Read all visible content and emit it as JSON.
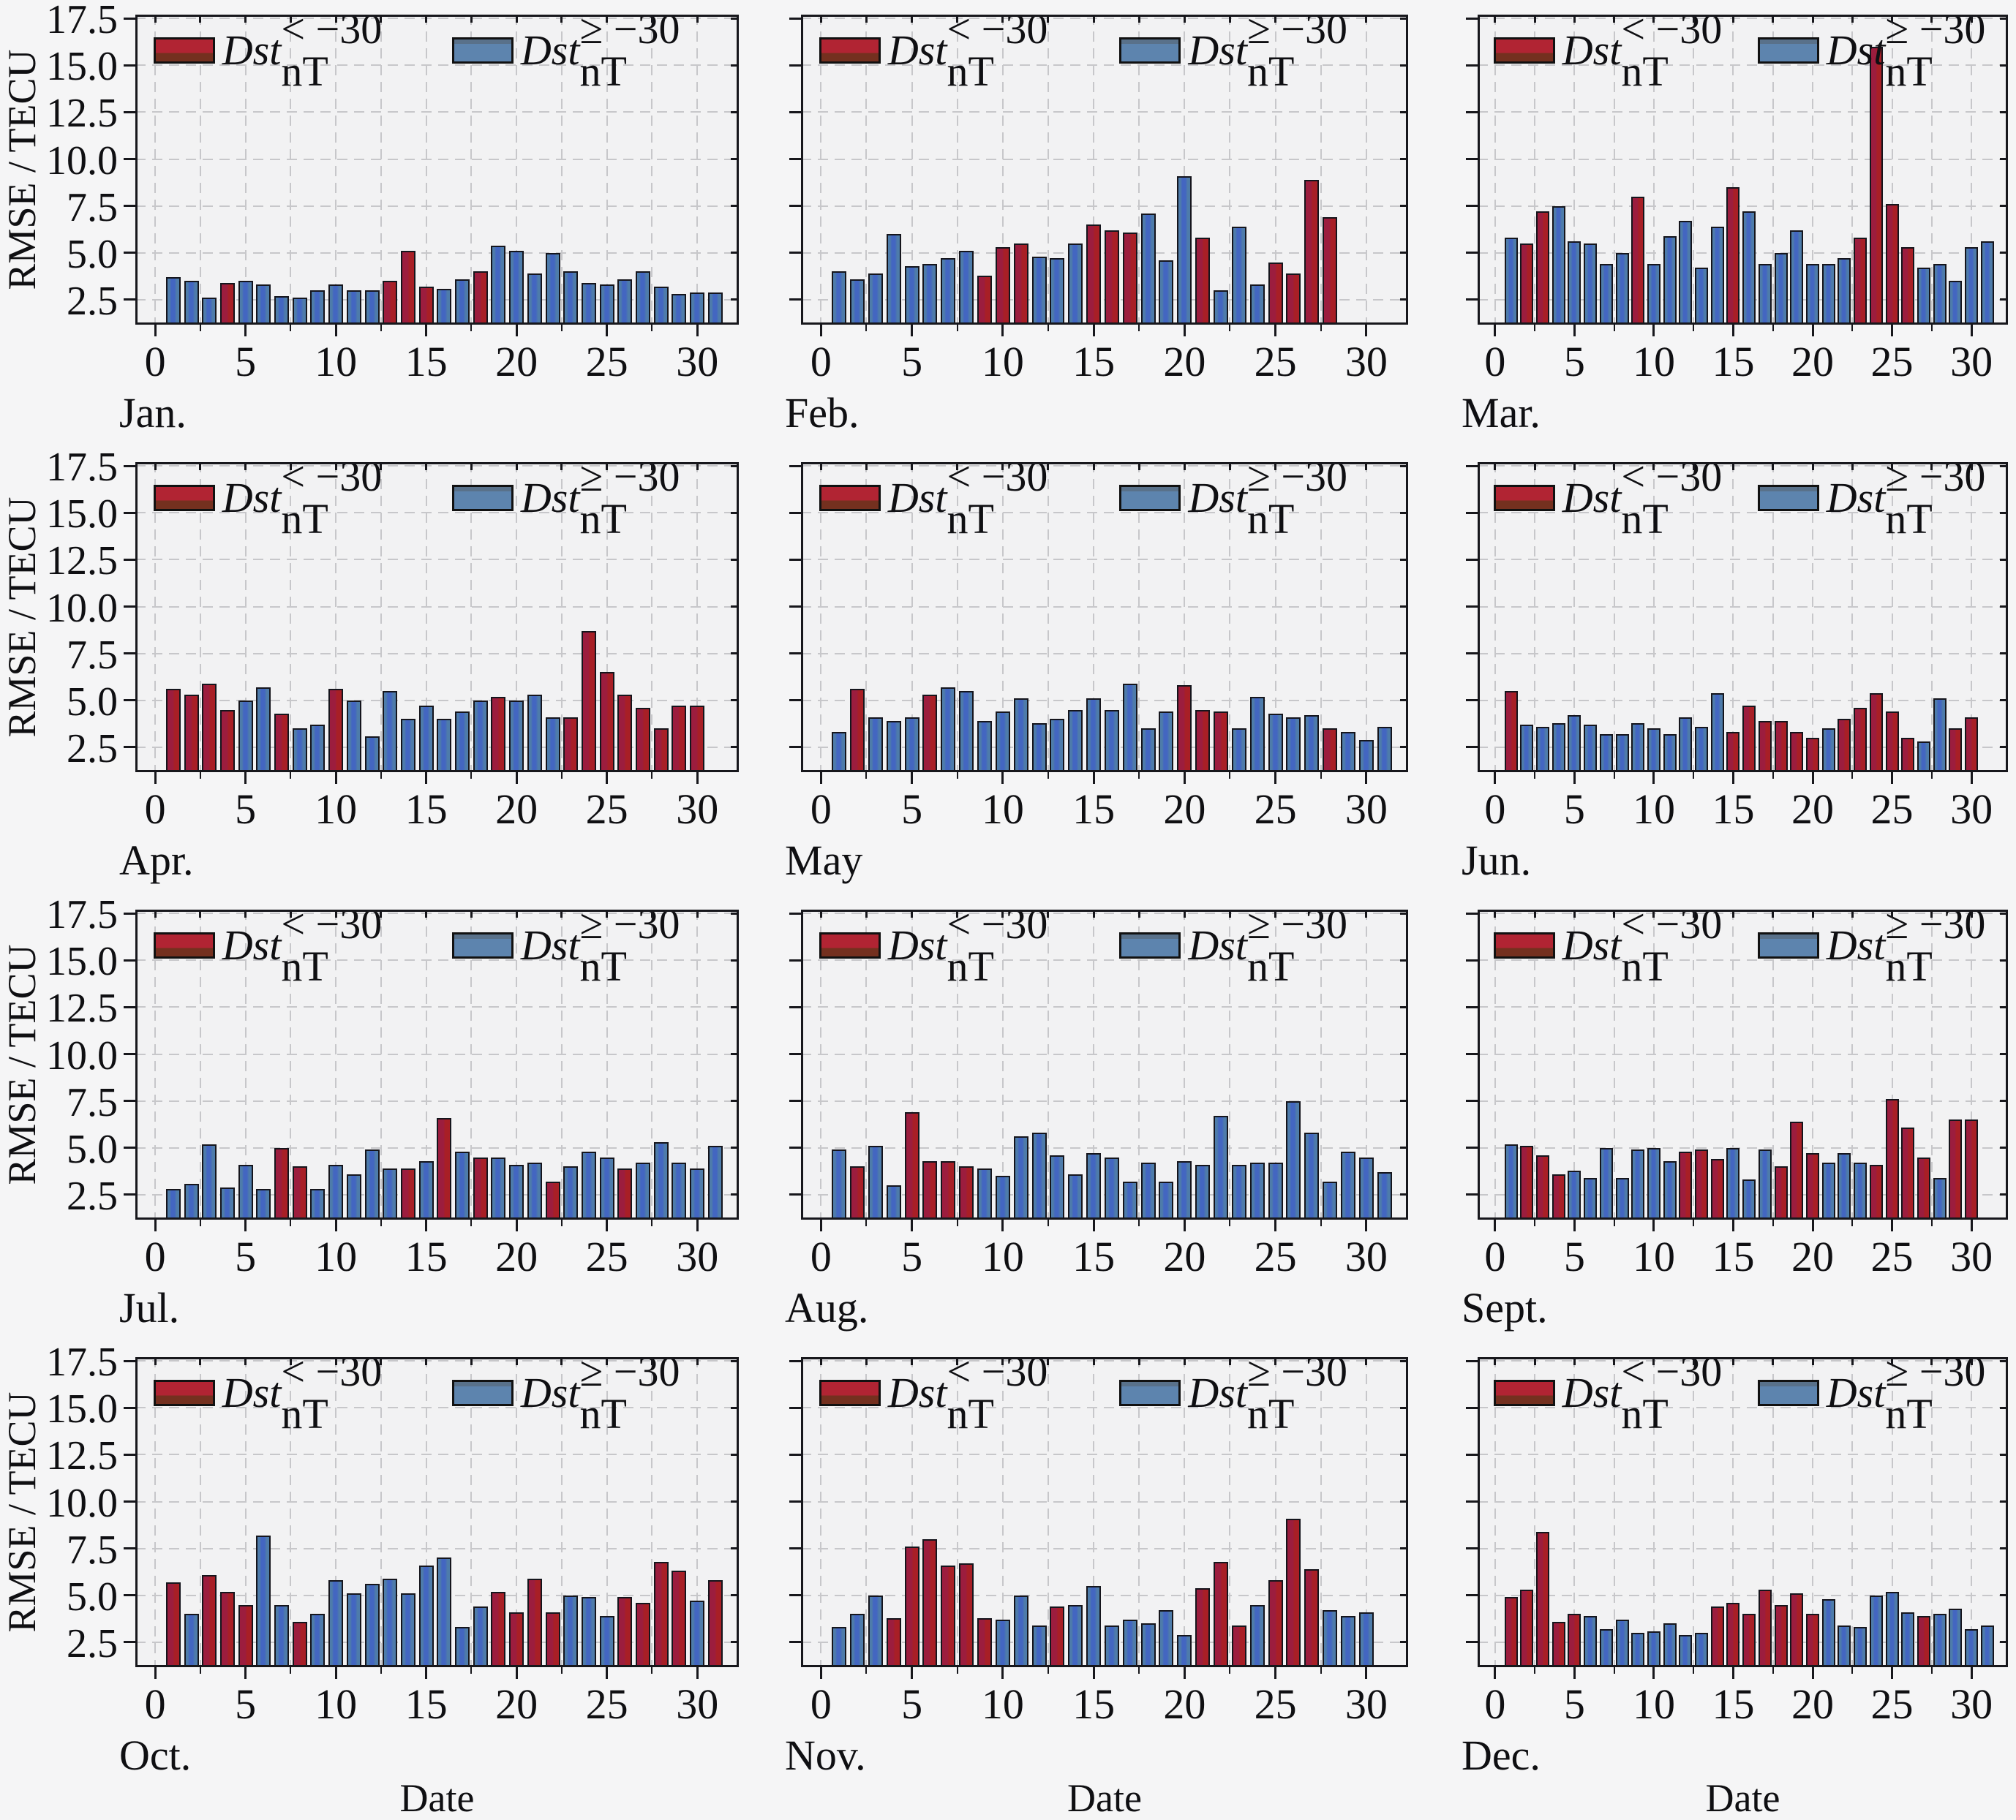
{
  "figure": {
    "ylabel": "RMSE / TECU",
    "xlabel": "Date",
    "legend": {
      "dst": "Dst",
      "storm_rest": "< −30 nT",
      "quiet_rest": "≥ −30 nT",
      "storm_full": "Dst< −30 nT",
      "quiet_full": "Dst≥ −30 nT"
    },
    "yticks": [
      "2.5",
      "5.0",
      "7.5",
      "10.0",
      "12.5",
      "15.0",
      "17.5"
    ],
    "xticks": [
      "0",
      "5",
      "10",
      "15",
      "20",
      "25",
      "30"
    ],
    "colors": {
      "storm_outer": "#a81f26",
      "storm_inner": "#9c1d3e",
      "quiet_outer": "#4e7caa",
      "quiet_inner": "#4366c1",
      "bar_edge": "#15151c",
      "frame": "#17171c",
      "grid": "#c7c7ca",
      "panel_bg": "#f2f2f3",
      "page_bg": "#f5f5f6"
    }
  },
  "chart_data": [
    {
      "type": "bar",
      "month": "Jan.",
      "ylim": [
        1.17,
        17.7
      ],
      "xlim": [
        -1.1,
        32.3
      ],
      "values": [
        3.7,
        3.5,
        2.6,
        3.4,
        3.5,
        3.3,
        2.7,
        2.6,
        3.0,
        3.3,
        3.0,
        3.0,
        3.5,
        5.1,
        3.2,
        3.1,
        3.6,
        4.0,
        5.4,
        5.1,
        3.9,
        5.0,
        4.0,
        3.4,
        3.3,
        3.6,
        4.0,
        3.2,
        2.8,
        2.9,
        2.9
      ],
      "storm_days": [
        4,
        13,
        14,
        15,
        18
      ]
    },
    {
      "type": "bar",
      "month": "Feb.",
      "ylim": [
        1.17,
        17.7
      ],
      "xlim": [
        -1.1,
        32.3
      ],
      "values": [
        4.0,
        3.6,
        3.9,
        6.0,
        4.3,
        4.4,
        4.7,
        5.1,
        3.8,
        5.3,
        5.5,
        4.8,
        4.7,
        5.5,
        6.5,
        6.2,
        6.1,
        7.1,
        4.6,
        9.1,
        5.8,
        3.0,
        6.4,
        3.3,
        4.5,
        3.9,
        8.9,
        6.9
      ],
      "storm_days": [
        9,
        10,
        11,
        15,
        16,
        17,
        21,
        25,
        26,
        27,
        28
      ]
    },
    {
      "type": "bar",
      "month": "Mar.",
      "ylim": [
        1.17,
        17.7
      ],
      "xlim": [
        -1.1,
        32.3
      ],
      "values": [
        5.8,
        5.5,
        7.2,
        7.5,
        5.6,
        5.5,
        4.4,
        5.0,
        8.0,
        4.4,
        5.9,
        6.7,
        4.2,
        6.4,
        8.5,
        7.2,
        4.4,
        5.0,
        6.2,
        4.4,
        4.4,
        4.7,
        5.8,
        16.0,
        7.6,
        5.3,
        4.2,
        4.4,
        3.5,
        5.3,
        5.6
      ],
      "storm_days": [
        2,
        3,
        9,
        15,
        23,
        24,
        25,
        26
      ]
    },
    {
      "type": "bar",
      "month": "Apr.",
      "ylim": [
        1.17,
        17.7
      ],
      "xlim": [
        -1.1,
        32.3
      ],
      "values": [
        5.6,
        5.3,
        5.9,
        4.5,
        5.0,
        5.7,
        4.3,
        3.5,
        3.7,
        5.6,
        5.0,
        3.1,
        5.5,
        4.0,
        4.7,
        4.0,
        4.4,
        5.0,
        5.2,
        5.0,
        5.3,
        4.1,
        4.1,
        8.7,
        6.5,
        5.3,
        4.6,
        3.5,
        4.7,
        4.7
      ],
      "storm_days": [
        1,
        2,
        3,
        4,
        7,
        10,
        19,
        23,
        24,
        25,
        26,
        27,
        28,
        29,
        30
      ]
    },
    {
      "type": "bar",
      "month": "May",
      "ylim": [
        1.17,
        17.7
      ],
      "xlim": [
        -1.1,
        32.3
      ],
      "values": [
        3.3,
        5.6,
        4.1,
        3.9,
        4.1,
        5.3,
        5.7,
        5.5,
        3.9,
        4.4,
        5.1,
        3.8,
        4.0,
        4.5,
        5.1,
        4.5,
        5.9,
        3.5,
        4.4,
        5.8,
        4.5,
        4.4,
        3.5,
        5.2,
        4.3,
        4.1,
        4.2,
        3.5,
        3.3,
        2.9,
        3.6
      ],
      "storm_days": [
        2,
        6,
        20,
        21,
        22,
        28
      ]
    },
    {
      "type": "bar",
      "month": "Jun.",
      "ylim": [
        1.17,
        17.7
      ],
      "xlim": [
        -1.1,
        32.3
      ],
      "values": [
        5.5,
        3.7,
        3.6,
        3.8,
        4.2,
        3.7,
        3.2,
        3.2,
        3.8,
        3.5,
        3.2,
        4.1,
        3.6,
        5.4,
        3.3,
        4.7,
        3.9,
        3.9,
        3.3,
        3.0,
        3.5,
        4.0,
        4.6,
        5.4,
        4.4,
        3.0,
        2.8,
        5.1,
        3.5,
        4.1
      ],
      "storm_days": [
        1,
        15,
        16,
        17,
        18,
        19,
        20,
        22,
        23,
        24,
        25,
        26,
        29,
        30
      ]
    },
    {
      "type": "bar",
      "month": "Jul.",
      "ylim": [
        1.17,
        17.7
      ],
      "xlim": [
        -1.1,
        32.3
      ],
      "values": [
        2.8,
        3.1,
        5.2,
        2.9,
        4.1,
        2.8,
        5.0,
        4.0,
        2.8,
        4.1,
        3.6,
        4.9,
        3.9,
        3.9,
        4.3,
        6.6,
        4.8,
        4.5,
        4.5,
        4.1,
        4.2,
        3.2,
        4.0,
        4.8,
        4.5,
        3.9,
        4.2,
        5.3,
        4.2,
        3.9,
        5.1
      ],
      "storm_days": [
        7,
        8,
        14,
        16,
        18,
        22,
        26
      ]
    },
    {
      "type": "bar",
      "month": "Aug.",
      "ylim": [
        1.17,
        17.7
      ],
      "xlim": [
        -1.1,
        32.3
      ],
      "values": [
        4.9,
        4.0,
        5.1,
        3.0,
        6.9,
        4.3,
        4.3,
        4.0,
        3.9,
        3.5,
        5.6,
        5.8,
        4.6,
        3.6,
        4.7,
        4.5,
        3.2,
        4.2,
        3.2,
        4.3,
        4.1,
        6.7,
        4.1,
        4.2,
        4.2,
        7.5,
        5.8,
        3.2,
        4.8,
        4.5,
        3.7
      ],
      "storm_days": [
        2,
        5,
        6,
        7,
        8
      ]
    },
    {
      "type": "bar",
      "month": "Sept.",
      "ylim": [
        1.17,
        17.7
      ],
      "xlim": [
        -1.1,
        32.3
      ],
      "values": [
        5.2,
        5.1,
        4.6,
        3.6,
        3.8,
        3.4,
        5.0,
        3.4,
        4.9,
        5.0,
        4.3,
        4.8,
        4.9,
        4.4,
        5.0,
        3.3,
        4.9,
        4.0,
        6.4,
        4.7,
        4.2,
        4.7,
        4.2,
        4.1,
        7.6,
        6.1,
        4.5,
        3.4,
        6.5,
        6.5
      ],
      "storm_days": [
        2,
        3,
        4,
        12,
        13,
        14,
        18,
        19,
        20,
        24,
        25,
        26,
        27,
        29,
        30
      ]
    },
    {
      "type": "bar",
      "month": "Oct.",
      "ylim": [
        1.17,
        17.7
      ],
      "xlim": [
        -1.1,
        32.3
      ],
      "values": [
        5.7,
        4.0,
        6.1,
        5.2,
        4.5,
        8.2,
        4.5,
        3.6,
        4.0,
        5.8,
        5.1,
        5.6,
        5.9,
        5.1,
        6.6,
        7.0,
        3.3,
        4.4,
        5.2,
        4.1,
        5.9,
        4.1,
        5.0,
        4.9,
        3.9,
        4.9,
        4.6,
        6.8,
        6.3,
        4.7,
        5.8
      ],
      "storm_days": [
        1,
        3,
        4,
        5,
        8,
        19,
        20,
        21,
        22,
        26,
        27,
        28,
        29,
        31
      ]
    },
    {
      "type": "bar",
      "month": "Nov.",
      "ylim": [
        1.17,
        17.7
      ],
      "xlim": [
        -1.1,
        32.3
      ],
      "values": [
        3.3,
        4.0,
        5.0,
        3.8,
        7.6,
        8.0,
        6.6,
        6.7,
        3.8,
        3.7,
        5.0,
        3.4,
        4.4,
        4.5,
        5.5,
        3.4,
        3.7,
        3.5,
        4.2,
        2.9,
        5.4,
        6.8,
        3.4,
        4.5,
        5.8,
        9.1,
        6.4,
        4.2,
        3.9,
        4.1
      ],
      "storm_days": [
        4,
        5,
        6,
        7,
        8,
        9,
        13,
        21,
        22,
        23,
        25,
        26,
        27
      ]
    },
    {
      "type": "bar",
      "month": "Dec.",
      "ylim": [
        1.17,
        17.7
      ],
      "xlim": [
        -1.1,
        32.3
      ],
      "values": [
        4.9,
        5.3,
        8.4,
        3.6,
        4.0,
        3.9,
        3.2,
        3.7,
        3.0,
        3.1,
        3.5,
        2.9,
        3.0,
        4.4,
        4.6,
        4.0,
        5.3,
        4.5,
        5.1,
        4.0,
        4.8,
        3.4,
        3.3,
        5.0,
        5.2,
        4.1,
        3.9,
        4.0,
        4.3,
        3.2,
        3.4
      ],
      "storm_days": [
        1,
        2,
        3,
        4,
        5,
        14,
        15,
        16,
        17,
        18,
        19,
        20,
        27
      ]
    }
  ]
}
